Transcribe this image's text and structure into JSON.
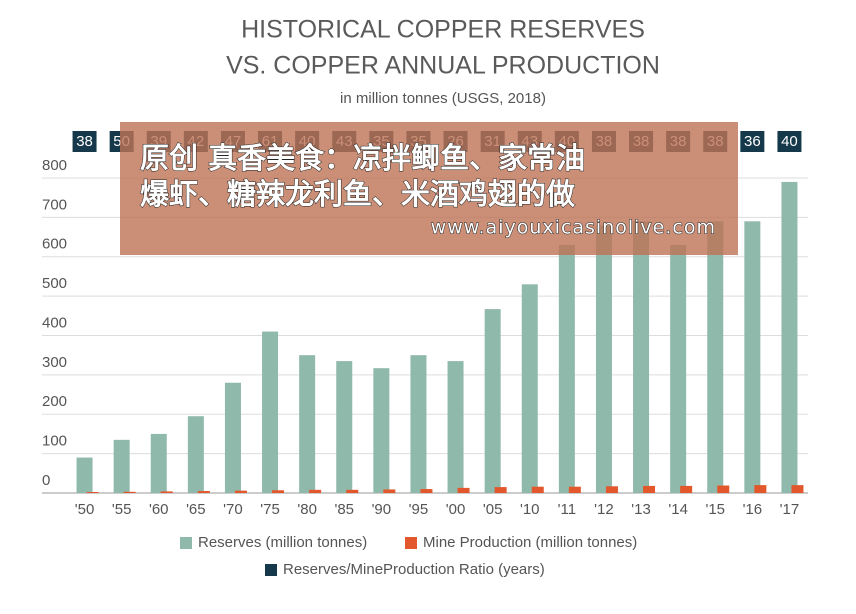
{
  "chart_data": {
    "type": "bar",
    "title": [
      "HISTORICAL COPPER RESERVES",
      "VS. COPPER ANNUAL PRODUCTION"
    ],
    "subtitle": "in million tonnes (USGS, 2018)",
    "categories": [
      "'50",
      "'55",
      "'60",
      "'65",
      "'70",
      "'75",
      "'80",
      "'85",
      "'90",
      "'95",
      "'00",
      "'05",
      "'10",
      "'11",
      "'12",
      "'13",
      "'14",
      "'15",
      "'16",
      "'17"
    ],
    "series": [
      {
        "name": "Reserves (million tonnes)",
        "color": "#8fb9aa",
        "values": [
          90,
          135,
          150,
          195,
          280,
          410,
          350,
          335,
          317,
          350,
          335,
          467,
          530,
          630,
          680,
          690,
          630,
          690,
          690,
          790
        ]
      },
      {
        "name": "Mine Production (million tonnes)",
        "color": "#e2572b",
        "values": [
          2.5,
          3,
          4,
          5,
          6,
          7,
          8,
          8,
          9,
          10,
          13,
          15,
          16,
          16,
          17,
          18,
          18,
          19,
          20,
          20
        ]
      },
      {
        "name": "Reserves/MineProduction Ratio (years)",
        "color": "#15394a",
        "values": [
          38,
          50,
          39,
          42,
          47,
          61,
          40,
          43,
          35,
          35,
          26,
          31,
          43,
          40,
          38,
          38,
          38,
          38,
          36,
          40
        ]
      }
    ],
    "ylim": [
      0,
      800
    ],
    "yticks": [
      0,
      100,
      200,
      300,
      400,
      500,
      600,
      700,
      800
    ],
    "grid": true
  },
  "overlay": {
    "headline": [
      "原创 真香美食：凉拌鲫鱼、家常油",
      "爆虾、糖辣龙利鱼、米酒鸡翅的做"
    ],
    "url": "www.aiyouxicasinolive.com"
  }
}
